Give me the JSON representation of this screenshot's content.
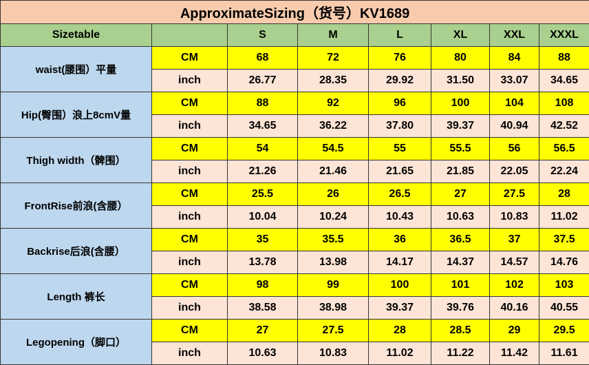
{
  "title": "ApproximateSizing（货号）KV1689",
  "header": {
    "first": "Sizetable",
    "unit_header": "",
    "sizes": [
      "S",
      "M",
      "L",
      "XL",
      "XXL",
      "XXXL"
    ]
  },
  "units": {
    "cm": "CM",
    "inch": "inch"
  },
  "rows": [
    {
      "label": "waist(腰围）平量",
      "cm": [
        "68",
        "72",
        "76",
        "80",
        "84",
        "88"
      ],
      "inch": [
        "26.77",
        "28.35",
        "29.92",
        "31.50",
        "33.07",
        "34.65"
      ]
    },
    {
      "label": "Hip(臀围）浪上8cmV量",
      "cm": [
        "88",
        "92",
        "96",
        "100",
        "104",
        "108"
      ],
      "inch": [
        "34.65",
        "36.22",
        "37.80",
        "39.37",
        "40.94",
        "42.52"
      ]
    },
    {
      "label": "Thigh width（髀围）",
      "cm": [
        "54",
        "54.5",
        "55",
        "55.5",
        "56",
        "56.5"
      ],
      "inch": [
        "21.26",
        "21.46",
        "21.65",
        "21.85",
        "22.05",
        "22.24"
      ]
    },
    {
      "label": "FrontRise前浪(含腰）",
      "cm": [
        "25.5",
        "26",
        "26.5",
        "27",
        "27.5",
        "28"
      ],
      "inch": [
        "10.04",
        "10.24",
        "10.43",
        "10.63",
        "10.83",
        "11.02"
      ]
    },
    {
      "label": "Backrise后浪(含腰）",
      "cm": [
        "35",
        "35.5",
        "36",
        "36.5",
        "37",
        "37.5"
      ],
      "inch": [
        "13.78",
        "13.98",
        "14.17",
        "14.37",
        "14.57",
        "14.76"
      ]
    },
    {
      "label": "Length 裤长",
      "cm": [
        "98",
        "99",
        "100",
        "101",
        "102",
        "103"
      ],
      "inch": [
        "38.58",
        "38.98",
        "39.37",
        "39.76",
        "40.16",
        "40.55"
      ]
    },
    {
      "label": "Legopening（脚口）",
      "cm": [
        "27",
        "27.5",
        "28",
        "28.5",
        "29",
        "29.5"
      ],
      "inch": [
        "10.63",
        "10.83",
        "11.02",
        "11.22",
        "11.42",
        "11.61"
      ]
    }
  ]
}
